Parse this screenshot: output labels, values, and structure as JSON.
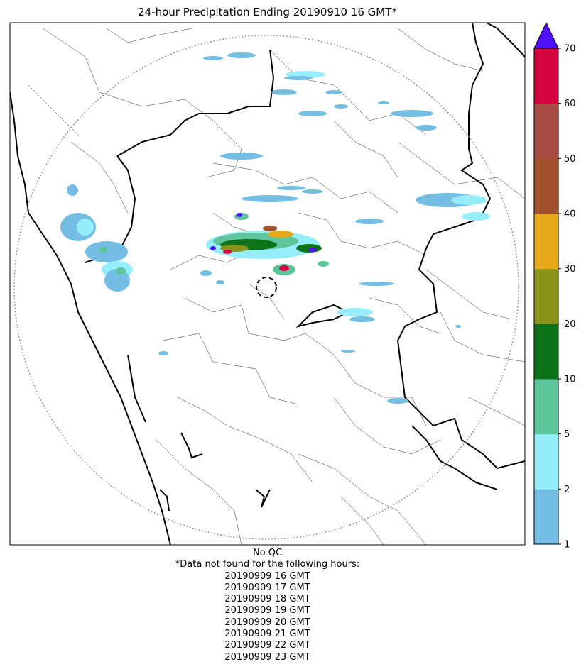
{
  "title": "24-hour Precipitation Ending 20190910 16 GMT*",
  "colorbar": {
    "ticks": [
      "1",
      "2",
      "5",
      "10",
      "20",
      "30",
      "40",
      "50",
      "60",
      "70"
    ],
    "colors": [
      "#74bde3",
      "#96eefd",
      "#5ec49a",
      "#0d7218",
      "#8b9219",
      "#e6a91a",
      "#a0502b",
      "#a64b43",
      "#d3043e"
    ],
    "extend_color": "#5010ff"
  },
  "footer": {
    "qc": "No QC",
    "note": "*Data not found for the following hours:",
    "missing_hours": [
      "20190909 16 GMT",
      "20190909 17 GMT",
      "20190909 18 GMT",
      "20190909 19 GMT",
      "20190909 20 GMT",
      "20190909 21 GMT",
      "20190909 22 GMT",
      "20190909 23 GMT"
    ]
  }
}
